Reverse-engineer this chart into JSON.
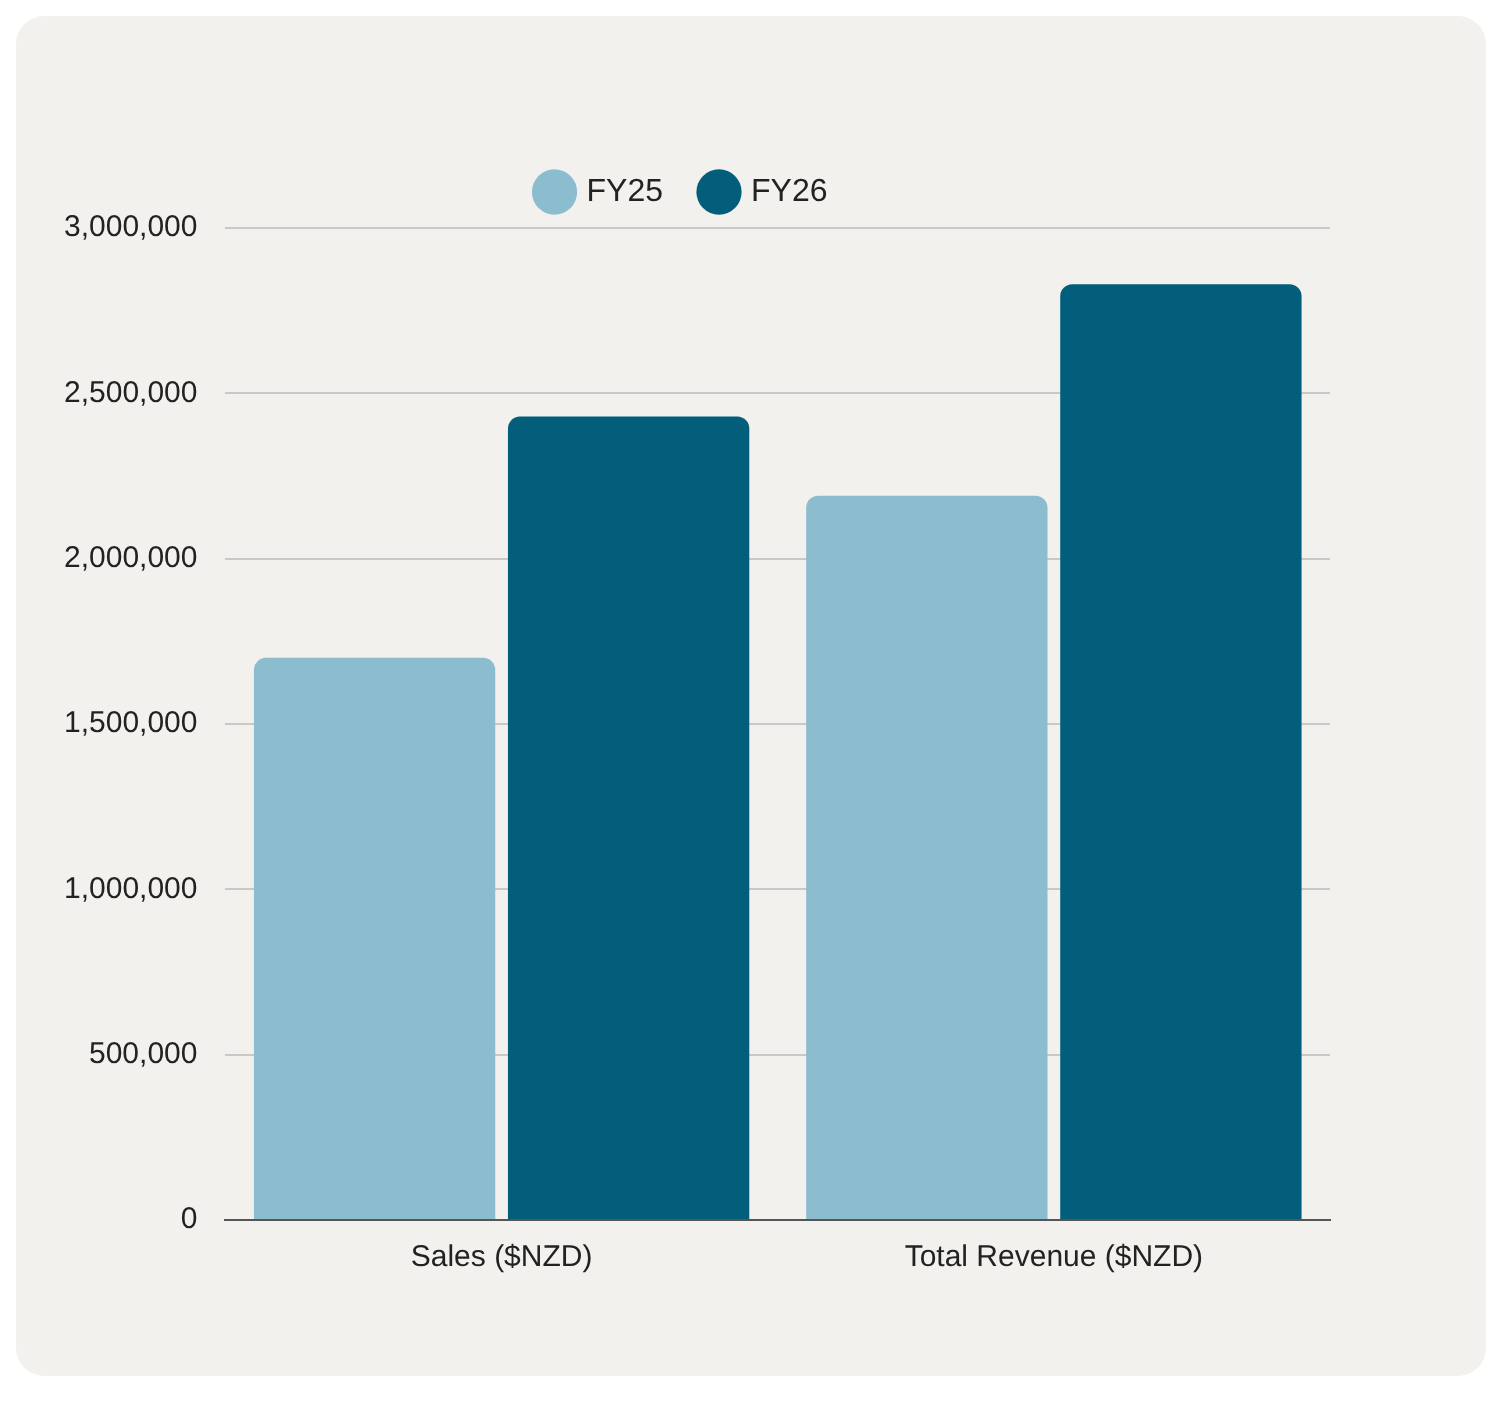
{
  "chart_data": {
    "type": "bar",
    "categories": [
      "Sales ($NZD)",
      "Total Revenue ($NZD)"
    ],
    "series": [
      {
        "name": "FY25",
        "color": "#8bbdcf",
        "values": [
          1700000,
          2190000
        ]
      },
      {
        "name": "FY26",
        "color": "#025e7b",
        "values": [
          2430000,
          2830000
        ]
      }
    ],
    "ylim": [
      0,
      3000000
    ],
    "yticks": [
      {
        "value": 0,
        "label": "0"
      },
      {
        "value": 500000,
        "label": "500,000"
      },
      {
        "value": 1000000,
        "label": "1,000,000"
      },
      {
        "value": 1500000,
        "label": "1,500,000"
      },
      {
        "value": 2000000,
        "label": "2,000,000"
      },
      {
        "value": 2500000,
        "label": "2,500,000"
      },
      {
        "value": 3000000,
        "label": "3,000,000"
      }
    ],
    "grid": "y",
    "legend": "top"
  }
}
